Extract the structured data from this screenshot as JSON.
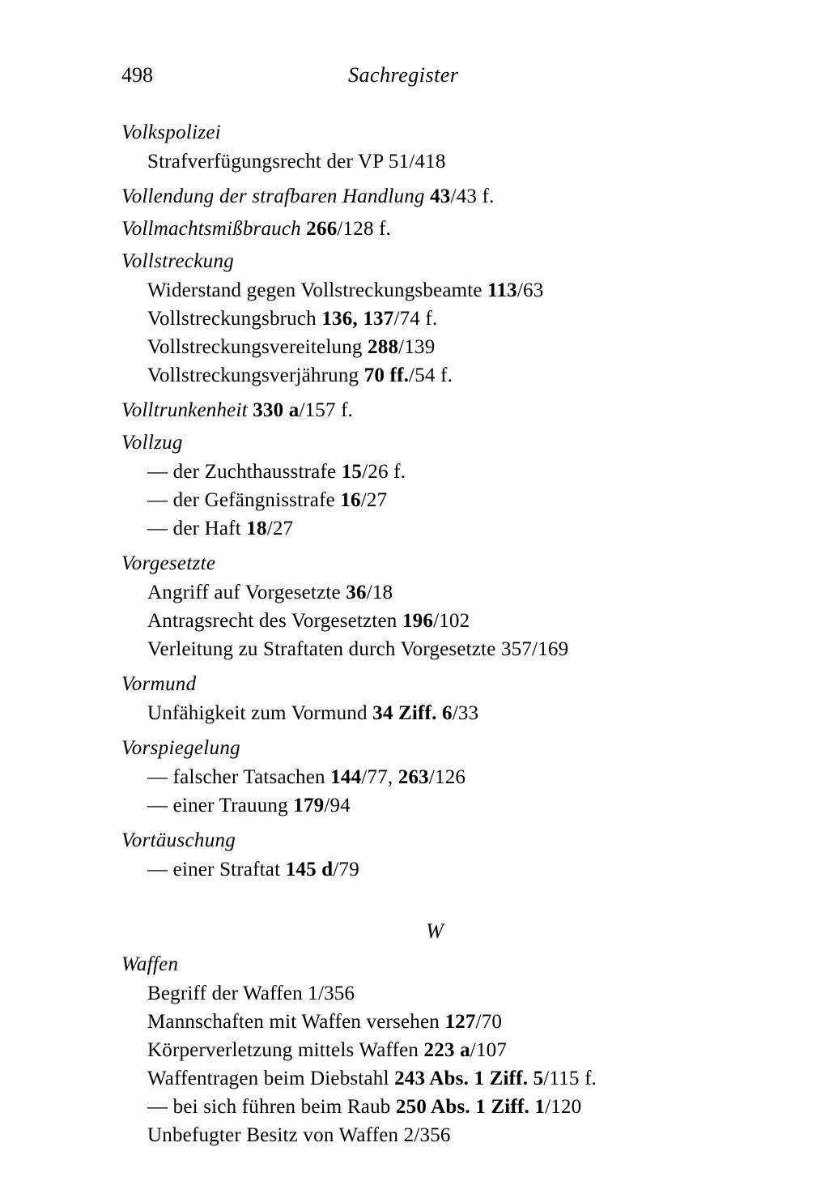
{
  "header": {
    "page_number": "498",
    "title": "Sachregister"
  },
  "entries": [
    {
      "head": "Volkspolizei",
      "subs": [
        {
          "t": "Strafverfügungsrecht der VP 51/418"
        }
      ]
    },
    {
      "inline": true,
      "head": "Vollendung der strafbaren Handlung",
      "tail_bold": "43",
      "tail_plain": "/43 f."
    },
    {
      "inline": true,
      "head": "Vollmachtsmißbrauch",
      "tail_bold": "266",
      "tail_plain": "/128 f."
    },
    {
      "head": "Vollstreckung",
      "subs": [
        {
          "t_pre": "Widerstand gegen Vollstreckungsbeamte ",
          "b": "113",
          "t_post": "/63"
        },
        {
          "t_pre": "Vollstreckungsbruch ",
          "b": "136, 137",
          "t_post": "/74 f."
        },
        {
          "t_pre": "Vollstreckungsvereitelung ",
          "b": "288",
          "t_post": "/139"
        },
        {
          "t_pre": "Vollstreckungsverjährung ",
          "b": "70 ff.",
          "t_post": "/54 f."
        }
      ]
    },
    {
      "inline": true,
      "head": "Volltrunkenheit",
      "tail_bold": "330 a",
      "tail_plain": "/157 f."
    },
    {
      "head": "Vollzug",
      "subs": [
        {
          "t_pre": "— der Zuchthausstrafe ",
          "b": "15",
          "t_post": "/26 f."
        },
        {
          "t_pre": "— der Gefängnisstrafe ",
          "b": "16",
          "t_post": "/27"
        },
        {
          "t_pre": "— der Haft ",
          "b": "18",
          "t_post": "/27"
        }
      ]
    },
    {
      "head": "Vorgesetzte",
      "subs": [
        {
          "t_pre": "Angriff auf Vorgesetzte ",
          "b": "36",
          "t_post": "/18"
        },
        {
          "t_pre": "Antragsrecht des Vorgesetzten ",
          "b": "196",
          "t_post": "/102"
        },
        {
          "t_pre": "Verleitung zu Straftaten durch Vorgesetzte 357/169"
        }
      ]
    },
    {
      "head": "Vormund",
      "subs": [
        {
          "t_pre": "Unfähigkeit zum Vormund ",
          "b": "34 Ziff. 6",
          "t_post": "/33"
        }
      ]
    },
    {
      "head": "Vorspiegelung",
      "subs": [
        {
          "t_pre": "— falscher Tatsachen ",
          "b": "144",
          "t_post": "/77, ",
          "b2": "263",
          "t_post2": "/126"
        },
        {
          "t_pre": "— einer Trauung ",
          "b": "179",
          "t_post": "/94"
        }
      ]
    },
    {
      "head": "Vortäuschung",
      "subs": [
        {
          "t_pre": "— einer Straftat ",
          "b": "145 d",
          "t_post": "/79"
        }
      ]
    }
  ],
  "section_letter": "W",
  "w_entry": {
    "head": "Waffen",
    "subs": [
      {
        "t_pre": "Begriff der Waffen 1/356"
      },
      {
        "t_pre": "Mannschaften mit Waffen versehen ",
        "b": "127",
        "t_post": "/70"
      },
      {
        "t_pre": "Körperverletzung mittels Waffen ",
        "b": "223 a",
        "t_post": "/107"
      },
      {
        "t_pre": "Waffentragen beim Diebstahl ",
        "b": "243 Abs. 1 Ziff. 5",
        "t_post": "/115 f."
      },
      {
        "t_pre": "— bei sich führen beim Raub ",
        "b": "250 Abs. 1 Ziff. 1",
        "t_post": "/120"
      },
      {
        "t_pre": "Unbefugter Besitz von Waffen 2/356"
      }
    ]
  }
}
